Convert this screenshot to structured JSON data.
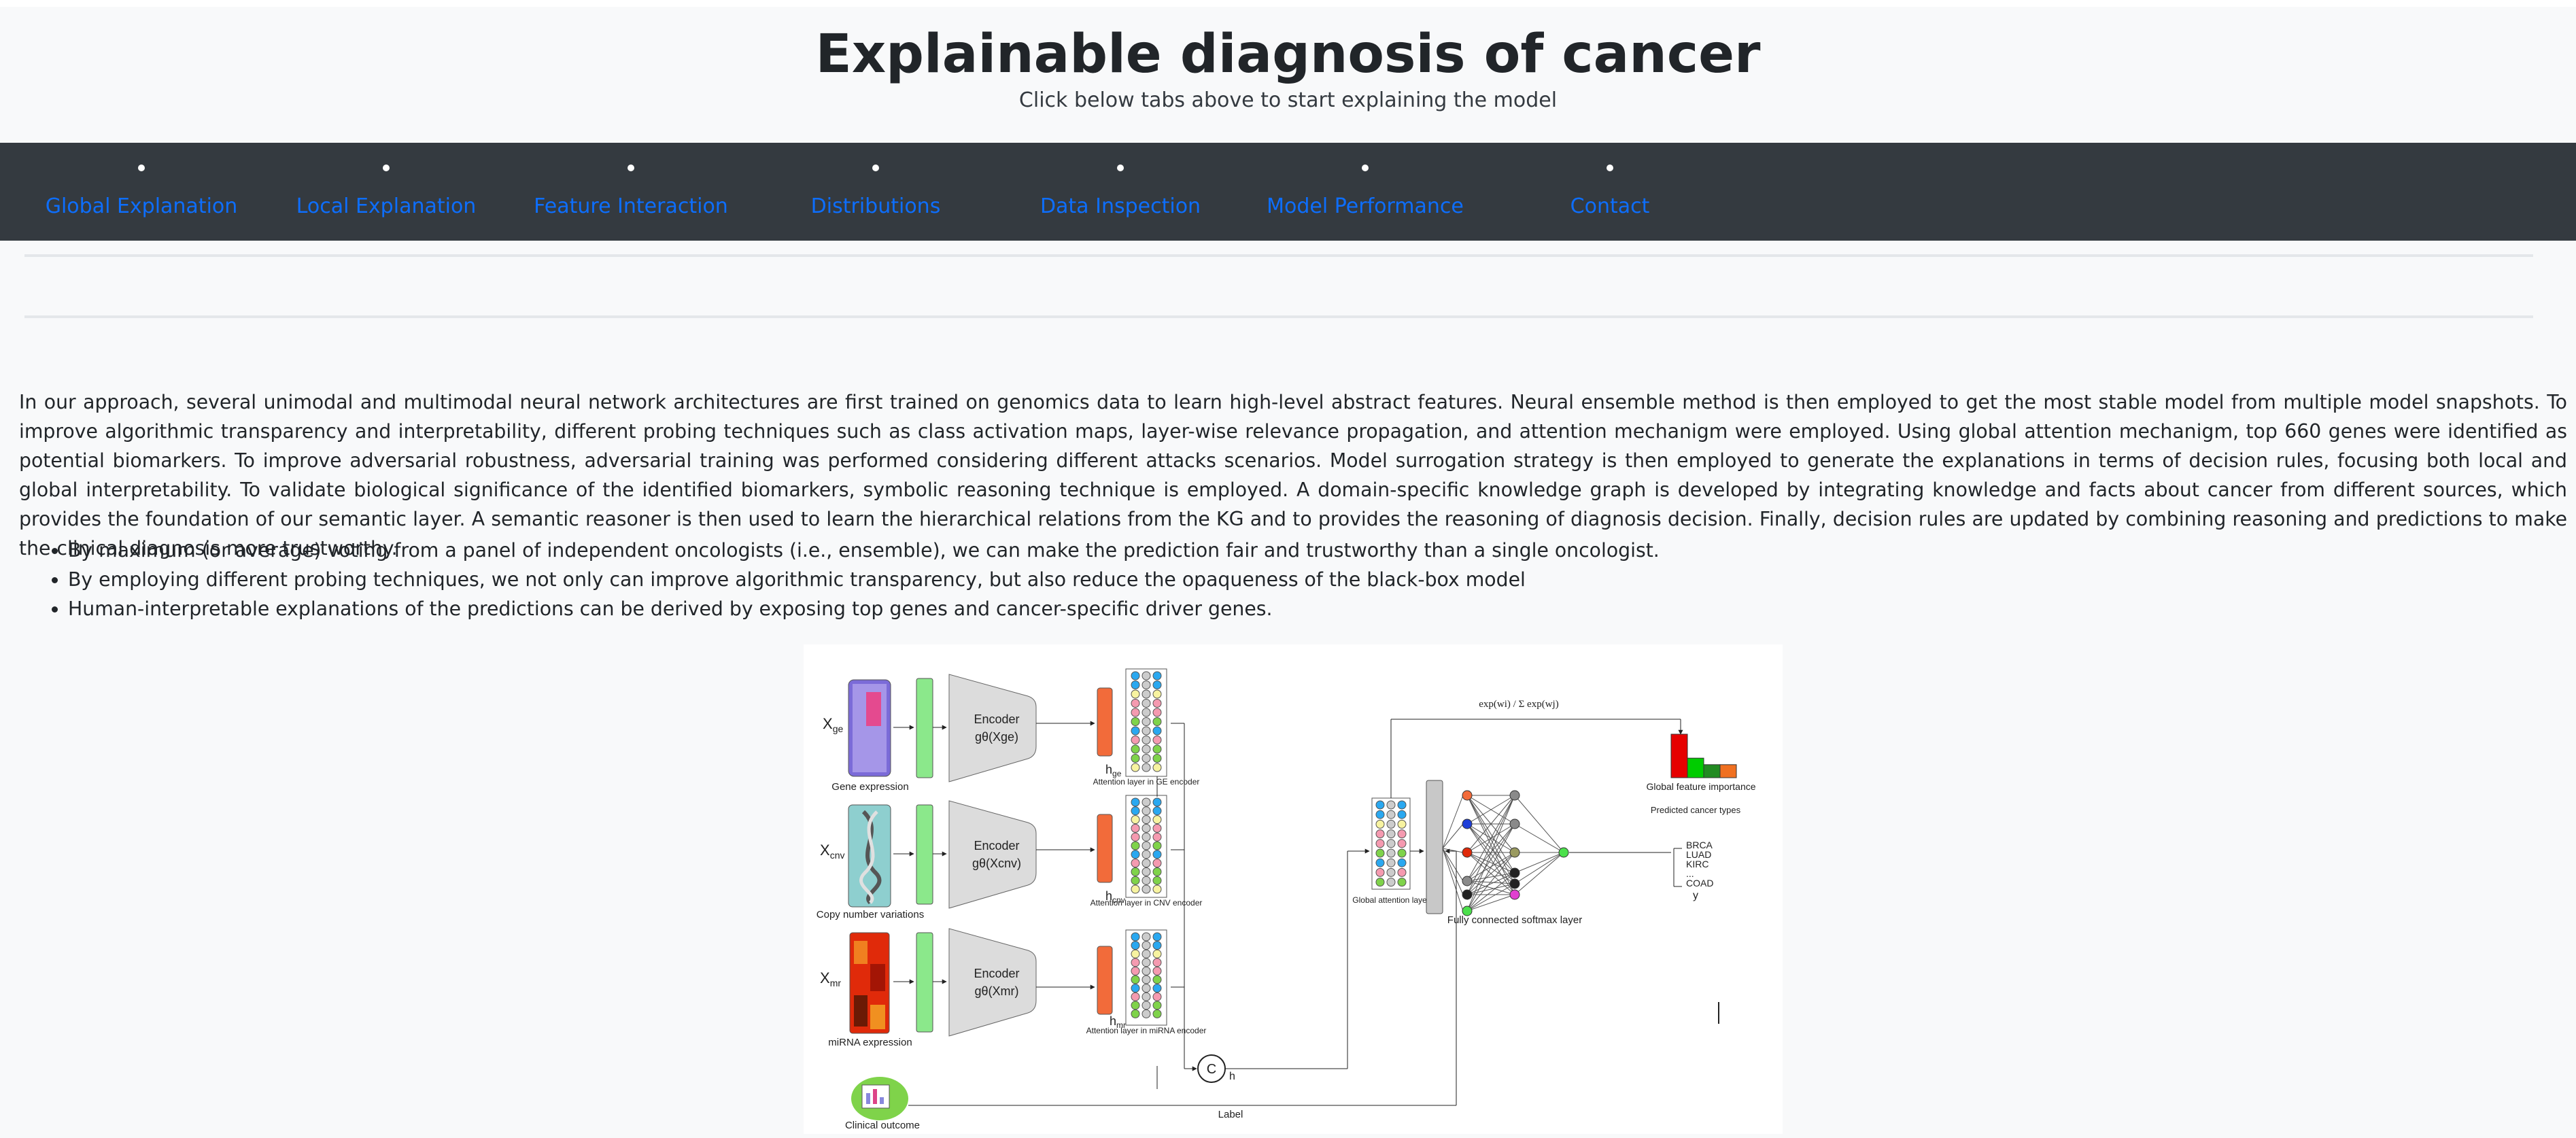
{
  "header": {
    "title": "Explainable diagnosis of cancer",
    "subtitle": "Click below tabs above to start explaining the model"
  },
  "nav": {
    "items": [
      {
        "label": "Global Explanation"
      },
      {
        "label": "Local Explanation"
      },
      {
        "label": "Feature Interaction"
      },
      {
        "label": "Distributions"
      },
      {
        "label": "Data Inspection"
      },
      {
        "label": "Model Performance"
      },
      {
        "label": "Contact"
      }
    ]
  },
  "content": {
    "intro": "In our approach, several unimodal and multimodal neural network architectures are first trained on genomics data to learn high-level abstract features. Neural ensemble method is then employed to get the most stable model from multiple model snapshots. To improve algorithmic transparency and interpretability, different probing techniques such as class activation maps, layer-wise relevance propagation, and attention mechanigm were employed. Using global attention mechanigm, top 660 genes were identified as potential biomarkers. To improve adversarial robustness, adversarial training was performed considering different attacks scenarios. Model surrogation strategy is then employed to generate the explanations in terms of decision rules, focusing both local and global interpretability. To validate biological significance of the identified biomarkers, symbolic reasoning technique is employed. A domain-specific knowledge graph is developed by integrating knowledge and facts about cancer from different sources, which provides the foundation of our semantic layer. A semantic reasoner is then used to learn the hierarchical relations from the KG and to provides the reasoning of diagnosis decision. Finally, decision rules are updated by combining reasoning and predictions to make the clinical diagnosis more trustworthy.",
    "bullets": [
      "By maximum (or average) voting from a panel of independent oncologists (i.e., ensemble), we can make the prediction fair and trustworthy than a single oncologist.",
      "By employing different probing techniques, we not only can improve algorithmic transparency, but also reduce the opaqueness of the black-box model",
      "Human-interpretable explanations of the predictions can be derived by exposing top genes and cancer-specific driver genes."
    ]
  },
  "figure": {
    "inputs": [
      {
        "var": "X",
        "sub": "ge",
        "caption": "Gene expression"
      },
      {
        "var": "X",
        "sub": "cnv",
        "caption": "Copy number variations"
      },
      {
        "var": "X",
        "sub": "mr",
        "caption": "miRNA expression"
      }
    ],
    "encoders": [
      {
        "title": "Encoder",
        "func": "gθ(Xge)"
      },
      {
        "title": "Encoder",
        "func": "gθ(Xcnv)"
      },
      {
        "title": "Encoder",
        "func": "gθ(Xmr)"
      }
    ],
    "hidden": [
      {
        "var": "h",
        "sub": "ge"
      },
      {
        "var": "h",
        "sub": "cnv"
      },
      {
        "var": "h",
        "sub": "mr"
      }
    ],
    "attention_captions": [
      "Attention layer in GE encoder",
      "Attention layer in CNV encoder",
      "Attention layer in miRNA encoder"
    ],
    "concat_symbol": "C",
    "concat_output": "h",
    "global_attention": "Global attention layer",
    "softmax_formula": "exp(wi) / Σ exp(wj)",
    "fc_caption": "Fully connected softmax layer",
    "importance_caption": "Global feature importance",
    "predicted_caption": "Predicted cancer types",
    "cancer_types": [
      "BRCA",
      "LUAD",
      "KIRC",
      "...",
      "COAD"
    ],
    "output_var": "y",
    "clinical_caption": "Clinical outcome",
    "label_caption": "Label",
    "importance_bars": [
      1.0,
      0.45,
      0.3,
      0.3
    ]
  },
  "colors": {
    "nav_bg": "#343a40",
    "link": "#0d6efd",
    "green_bar": "#8be88b",
    "orange_bar": "#f26b3a",
    "encoder": "#dcdcdc",
    "bar_red": "#e60000",
    "bar_green": "#00cc00",
    "bar_darkgreen": "#228b22",
    "bar_orange": "#f07020"
  }
}
